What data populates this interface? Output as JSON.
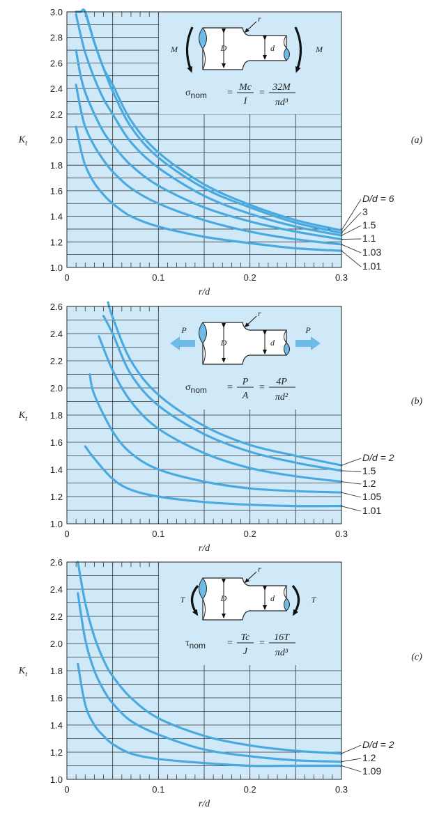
{
  "colors": {
    "background": "#cfe9f8",
    "curve": "#4aa9de",
    "grid": "#333333",
    "specimen": "#6ebbe8"
  },
  "chart_data": [
    {
      "id": "a",
      "type": "line",
      "panel_label": "(a)",
      "xlabel": "r/d",
      "ylabel": "K_t",
      "xlim": [
        0,
        0.3
      ],
      "ylim": [
        1.0,
        3.0
      ],
      "x_ticks": [
        "0",
        "0.1",
        "0.2",
        "0.3"
      ],
      "y_ticks": [
        "1.0",
        "1.2",
        "1.4",
        "1.6",
        "1.8",
        "2.0",
        "2.2",
        "2.4",
        "2.6",
        "2.8",
        "3.0"
      ],
      "grid": true,
      "formula": {
        "lhs": "σ",
        "sub": "nom",
        "num1": "Mc",
        "den1": "I",
        "num2": "32M",
        "den2": "πd³"
      },
      "load": {
        "type": "moment",
        "label": "M"
      },
      "series": [
        {
          "name": "D/d = 6",
          "x": [
            0.01,
            0.015,
            0.02,
            0.03,
            0.04,
            0.05,
            0.07,
            0.1,
            0.15,
            0.2,
            0.25,
            0.3
          ],
          "y": [
            3.0,
            3.0,
            3.0,
            2.76,
            2.56,
            2.43,
            2.15,
            1.9,
            1.65,
            1.49,
            1.37,
            1.29
          ]
        },
        {
          "name": "3",
          "x": [
            0.02,
            0.03,
            0.04,
            0.05,
            0.07,
            0.1,
            0.15,
            0.2,
            0.25,
            0.3
          ],
          "y": [
            3.0,
            2.76,
            2.56,
            2.38,
            2.1,
            1.86,
            1.62,
            1.47,
            1.35,
            1.27
          ]
        },
        {
          "name": "1.5",
          "x": [
            0.01,
            0.015,
            0.02,
            0.03,
            0.04,
            0.05,
            0.07,
            0.1,
            0.15,
            0.2,
            0.25,
            0.3
          ],
          "y": [
            2.98,
            2.82,
            2.68,
            2.48,
            2.32,
            2.2,
            1.98,
            1.78,
            1.56,
            1.42,
            1.32,
            1.25
          ]
        },
        {
          "name": "1.1",
          "x": [
            0.01,
            0.015,
            0.02,
            0.03,
            0.04,
            0.05,
            0.07,
            0.1,
            0.15,
            0.2,
            0.25,
            0.3
          ],
          "y": [
            2.7,
            2.5,
            2.37,
            2.2,
            2.06,
            1.96,
            1.8,
            1.64,
            1.47,
            1.36,
            1.28,
            1.22
          ]
        },
        {
          "name": "1.03",
          "x": [
            0.01,
            0.015,
            0.02,
            0.03,
            0.04,
            0.05,
            0.07,
            0.1,
            0.15,
            0.2,
            0.25,
            0.3
          ],
          "y": [
            2.43,
            2.24,
            2.1,
            1.95,
            1.84,
            1.75,
            1.62,
            1.5,
            1.37,
            1.28,
            1.22,
            1.18
          ]
        },
        {
          "name": "1.01",
          "x": [
            0.01,
            0.015,
            0.02,
            0.03,
            0.04,
            0.05,
            0.07,
            0.1,
            0.15,
            0.2,
            0.25,
            0.3
          ],
          "y": [
            2.1,
            1.93,
            1.8,
            1.66,
            1.57,
            1.5,
            1.4,
            1.32,
            1.24,
            1.19,
            1.15,
            1.13
          ]
        }
      ]
    },
    {
      "id": "b",
      "type": "line",
      "panel_label": "(b)",
      "xlabel": "r/d",
      "ylabel": "K_t",
      "xlim": [
        0,
        0.3
      ],
      "ylim": [
        1.0,
        2.6
      ],
      "x_ticks": [
        "0",
        "0.1",
        "0.2",
        "0.3"
      ],
      "y_ticks": [
        "1.0",
        "1.2",
        "1.4",
        "1.6",
        "1.8",
        "2.0",
        "2.2",
        "2.4",
        "2.6"
      ],
      "grid": true,
      "formula": {
        "lhs": "σ",
        "sub": "nom",
        "num1": "P",
        "den1": "A",
        "num2": "4P",
        "den2": "πd²"
      },
      "load": {
        "type": "axial",
        "label": "P"
      },
      "series": [
        {
          "name": "D/d = 2",
          "x": [
            0.045,
            0.05,
            0.07,
            0.1,
            0.15,
            0.2,
            0.25,
            0.3
          ],
          "y": [
            2.63,
            2.52,
            2.2,
            1.95,
            1.72,
            1.58,
            1.5,
            1.43
          ]
        },
        {
          "name": "1.5",
          "x": [
            0.04,
            0.05,
            0.07,
            0.1,
            0.15,
            0.2,
            0.25,
            0.3
          ],
          "y": [
            2.53,
            2.4,
            2.1,
            1.87,
            1.66,
            1.53,
            1.45,
            1.39
          ]
        },
        {
          "name": "1.2",
          "x": [
            0.035,
            0.05,
            0.07,
            0.1,
            0.15,
            0.2,
            0.25,
            0.3
          ],
          "y": [
            2.38,
            2.13,
            1.9,
            1.7,
            1.52,
            1.41,
            1.35,
            1.31
          ]
        },
        {
          "name": "1.05",
          "x": [
            0.025,
            0.03,
            0.05,
            0.07,
            0.1,
            0.15,
            0.2,
            0.25,
            0.3
          ],
          "y": [
            2.1,
            1.95,
            1.68,
            1.52,
            1.4,
            1.31,
            1.26,
            1.24,
            1.23
          ]
        },
        {
          "name": "1.01",
          "x": [
            0.02,
            0.03,
            0.05,
            0.07,
            0.1,
            0.15,
            0.2,
            0.25,
            0.3
          ],
          "y": [
            1.57,
            1.48,
            1.33,
            1.25,
            1.2,
            1.16,
            1.14,
            1.13,
            1.13
          ]
        }
      ]
    },
    {
      "id": "c",
      "type": "line",
      "panel_label": "(c)",
      "xlabel": "r/d",
      "ylabel": "K_t",
      "xlim": [
        0,
        0.3
      ],
      "ylim": [
        1.0,
        2.6
      ],
      "x_ticks": [
        "0",
        "0.1",
        "0.2",
        "0.3"
      ],
      "y_ticks": [
        "1.0",
        "1.2",
        "1.4",
        "1.6",
        "1.8",
        "2.0",
        "2.2",
        "2.4",
        "2.6"
      ],
      "grid": true,
      "formula": {
        "lhs": "τ",
        "sub": "nom",
        "num1": "Tc",
        "den1": "J",
        "num2": "16T",
        "den2": "πd³"
      },
      "load": {
        "type": "torque",
        "label": "T"
      },
      "series": [
        {
          "name": "D/d = 2",
          "x": [
            0.012,
            0.02,
            0.03,
            0.04,
            0.05,
            0.07,
            0.1,
            0.15,
            0.2,
            0.25,
            0.3
          ],
          "y": [
            2.6,
            2.3,
            2.05,
            1.88,
            1.76,
            1.6,
            1.45,
            1.32,
            1.25,
            1.21,
            1.19
          ]
        },
        {
          "name": "1.2",
          "x": [
            0.012,
            0.02,
            0.03,
            0.04,
            0.05,
            0.07,
            0.1,
            0.15,
            0.2,
            0.25,
            0.3
          ],
          "y": [
            2.37,
            2.03,
            1.8,
            1.66,
            1.56,
            1.43,
            1.33,
            1.22,
            1.17,
            1.14,
            1.13
          ]
        },
        {
          "name": "1.09",
          "x": [
            0.012,
            0.02,
            0.03,
            0.04,
            0.05,
            0.07,
            0.1,
            0.15,
            0.2,
            0.25,
            0.3
          ],
          "y": [
            1.85,
            1.55,
            1.4,
            1.32,
            1.26,
            1.19,
            1.15,
            1.12,
            1.1,
            1.1,
            1.1
          ]
        }
      ]
    }
  ]
}
